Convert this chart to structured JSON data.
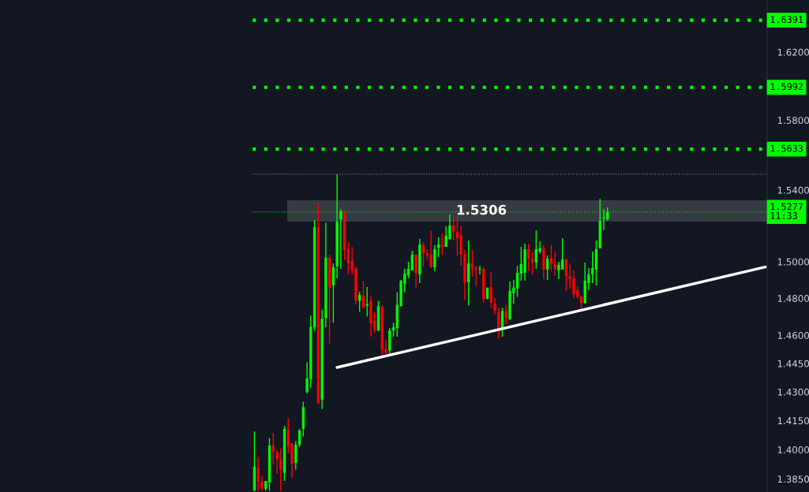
{
  "chart_data": {
    "type": "candlestick",
    "categories": [
      null,
      null,
      null,
      null,
      null,
      null,
      null,
      null,
      null,
      null,
      null,
      null,
      null,
      null,
      null,
      null,
      null,
      null,
      null,
      null,
      null,
      null,
      null,
      null,
      null,
      null,
      null,
      null,
      null,
      null,
      null,
      null,
      null,
      null,
      null,
      null,
      null,
      null,
      null,
      null,
      null,
      null,
      null,
      null,
      null,
      null,
      null,
      null,
      null,
      null,
      null,
      null,
      null,
      null,
      null,
      null,
      null,
      null,
      null,
      null,
      null,
      null,
      null,
      null,
      null,
      null,
      null,
      null,
      null,
      null,
      null,
      null,
      null,
      null,
      null,
      null,
      null,
      null,
      null,
      null,
      null,
      null,
      null,
      null,
      null,
      null,
      null,
      null,
      null,
      null,
      null,
      null,
      null,
      null,
      null,
      null,
      null,
      null,
      null,
      null,
      null,
      null,
      null,
      null,
      null,
      null,
      null,
      null,
      null,
      null,
      null,
      null,
      null,
      null,
      null,
      null,
      null,
      null,
      null,
      null,
      null,
      null,
      null,
      null,
      null,
      null,
      null,
      null,
      null,
      null,
      null,
      null,
      null,
      null,
      null,
      null,
      null
    ],
    "series": [
      {
        "type": "candlestick",
        "colors": [
          "#00ff00",
          "#ff0000",
          "#ff0000",
          "#00ff00",
          "#00ff00",
          "#ff0000",
          "#ff0000",
          "#ff0000",
          "#00ff00",
          "#ff0000",
          "#ff0000",
          "#00ff00",
          "#00ff00",
          "#00ff00",
          "#00ff00",
          "#00ff00",
          "#00ff00",
          "#ff0000",
          "#00ff00",
          "#00ff00",
          "#ff0000",
          "#00ff00",
          "#00ff00",
          "#00ff00",
          "#ff0000",
          "#ff0000",
          "#ff0000",
          "#ff0000",
          "#00ff00",
          "#ff0000",
          "#00ff00",
          "#ff0000",
          "#ff0000",
          "#00ff00",
          "#ff0000",
          "#ff0000",
          "#00ff00",
          "#00ff00",
          "#00ff00",
          "#00ff00",
          "#00ff00",
          "#00ff00",
          "#00ff00",
          "#ff0000",
          "#00ff00",
          "#ff0000",
          "#ff0000",
          "#ff0000",
          "#00ff00",
          "#00ff00",
          "#ff0000",
          "#00ff00",
          "#00ff00",
          "#ff0000",
          "#ff0000",
          "#ff0000",
          "#ff0000",
          "#00ff00",
          "#ff0000",
          "#ff0000",
          "#00ff00",
          "#ff0000",
          "#00ff00",
          "#ff0000",
          "#ff0000",
          "#ff0000",
          "#00ff00",
          "#ff0000",
          "#00ff00",
          "#00ff00",
          "#00ff00",
          "#00ff00",
          "#00ff00",
          "#ff0000",
          "#ff0000",
          "#00ff00",
          "#00ff00",
          "#ff0000",
          "#00ff00",
          "#ff0000",
          "#ff0000",
          "#00ff00",
          "#00ff00",
          "#ff0000",
          "#ff0000",
          "#ff0000",
          "#ff0000",
          "#ff0000",
          "#00ff00",
          "#00ff00",
          "#00ff00",
          "#00ff00",
          "#00ff00",
          "#00ff00",
          "#00ff00",
          null,
          null,
          null,
          null,
          null,
          null,
          null,
          null,
          null,
          null,
          null,
          null,
          null,
          null,
          null,
          null,
          null,
          null,
          null,
          null,
          null,
          null,
          null,
          null,
          null,
          null,
          null,
          null,
          null,
          null,
          null,
          null,
          null,
          null,
          null,
          null,
          null,
          null,
          null,
          null,
          null,
          null
        ],
        "ohlc": [
          [
            1.379,
            1.4094,
            1.379,
            1.3913
          ],
          [
            1.3909,
            1.3963,
            1.379,
            1.3836
          ],
          [
            1.384,
            1.3866,
            1.379,
            1.38
          ],
          [
            1.38,
            1.384,
            1.379,
            1.384
          ],
          [
            1.3832,
            1.406,
            1.379,
            1.4021
          ],
          [
            1.4021,
            1.4087,
            1.3924,
            1.399
          ],
          [
            1.3986,
            1.3998,
            1.3878,
            1.3951
          ],
          [
            1.3951,
            1.4006,
            1.379,
            1.3897
          ],
          [
            1.3882,
            1.4123,
            1.384,
            1.4107
          ],
          [
            1.4103,
            1.4163,
            1.3982,
            1.4017
          ],
          [
            1.4033,
            1.4033,
            1.3855,
            1.3928
          ],
          [
            1.3932,
            1.4044,
            1.3897,
            1.4025
          ],
          [
            1.4025,
            1.4107,
            1.4013,
            1.4099
          ],
          [
            1.4107,
            1.4247,
            1.4068,
            1.422
          ],
          [
            1.4299,
            1.4457,
            1.4291,
            1.4371
          ],
          [
            1.4367,
            1.4706,
            1.4322,
            1.4647
          ],
          [
            1.4643,
            1.5231,
            1.4622,
            1.5192
          ],
          [
            1.5192,
            1.5325,
            1.4235,
            1.4243
          ],
          [
            1.4259,
            1.4738,
            1.421,
            1.4689
          ],
          [
            1.4693,
            1.5217,
            1.4643,
            1.5022
          ],
          [
            1.5022,
            1.5039,
            1.4555,
            1.4858
          ],
          [
            1.487,
            1.4991,
            1.4669,
            1.497
          ],
          [
            1.4974,
            1.549,
            1.4909,
            1.5222
          ],
          [
            1.5236,
            1.5293,
            1.4961,
            1.528
          ],
          [
            1.5276,
            1.5285,
            1.5009,
            1.5065
          ],
          [
            1.5069,
            1.5108,
            1.4931,
            1.4991
          ],
          [
            1.5004,
            1.5082,
            1.4931,
            1.4952
          ],
          [
            1.4961,
            1.4974,
            1.4769,
            1.479
          ],
          [
            1.4786,
            1.4836,
            1.4727,
            1.4819
          ],
          [
            1.4815,
            1.4892,
            1.4748,
            1.4748
          ],
          [
            1.4761,
            1.4862,
            1.4702,
            1.4769
          ],
          [
            1.4786,
            1.4815,
            1.4593,
            1.4664
          ],
          [
            1.4676,
            1.4723,
            1.4614,
            1.463
          ],
          [
            1.4626,
            1.4786,
            1.4622,
            1.4757
          ],
          [
            1.4752,
            1.4761,
            1.4494,
            1.4523
          ],
          [
            1.4527,
            1.4576,
            1.4502,
            1.4506
          ],
          [
            1.4519,
            1.4639,
            1.4494,
            1.4626
          ],
          [
            1.4626,
            1.4668,
            1.4593,
            1.4643
          ],
          [
            1.4639,
            1.4832,
            1.4593,
            1.4765
          ],
          [
            1.4757,
            1.49,
            1.4757,
            1.4896
          ],
          [
            1.4879,
            1.4961,
            1.4832,
            1.4935
          ],
          [
            1.4926,
            1.5,
            1.4909,
            1.4961
          ],
          [
            1.4952,
            1.5061,
            1.4952,
            1.5039
          ],
          [
            1.5039,
            1.5039,
            1.4858,
            1.4939
          ],
          [
            1.4931,
            1.5126,
            1.4883,
            1.5095
          ],
          [
            1.5091,
            1.5108,
            1.4974,
            1.5048
          ],
          [
            1.5048,
            1.5069,
            1.5013,
            1.5035
          ],
          [
            1.5039,
            1.517,
            1.4965,
            1.497
          ],
          [
            1.497,
            1.5091,
            1.4948,
            1.5069
          ],
          [
            1.5078,
            1.5135,
            1.5026,
            1.5095
          ],
          [
            1.5095,
            1.5157,
            1.5039,
            1.5082
          ],
          [
            1.5082,
            1.5196,
            1.5082,
            1.5144
          ],
          [
            1.5126,
            1.5262,
            1.5121,
            1.52
          ],
          [
            1.52,
            1.5258,
            1.5117,
            1.5165
          ],
          [
            1.5165,
            1.5249,
            1.503,
            1.513
          ],
          [
            1.5144,
            1.52,
            1.4978,
            1.5039
          ],
          [
            1.5043,
            1.5065,
            1.479,
            1.4883
          ],
          [
            1.4887,
            1.5117,
            1.4761,
            1.4991
          ],
          [
            1.4991,
            1.5065,
            1.4918,
            1.4961
          ],
          [
            1.4965,
            1.4978,
            1.4866,
            1.4957
          ],
          [
            1.4957,
            1.4978,
            1.4931,
            1.4961
          ],
          [
            1.4961,
            1.497,
            1.4778,
            1.4794
          ],
          [
            1.4798,
            1.4858,
            1.4794,
            1.4858
          ],
          [
            1.4862,
            1.4944,
            1.4748,
            1.4778
          ],
          [
            1.4769,
            1.4803,
            1.471,
            1.4731
          ],
          [
            1.4723,
            1.4748,
            1.4584,
            1.4634
          ],
          [
            1.4634,
            1.4748,
            1.4593,
            1.4731
          ],
          [
            1.4731,
            1.4765,
            1.466,
            1.4693
          ],
          [
            1.4685,
            1.4892,
            1.4685,
            1.4841
          ],
          [
            1.4828,
            1.49,
            1.4769,
            1.4858
          ],
          [
            1.4853,
            1.4978,
            1.4807,
            1.4939
          ],
          [
            1.4935,
            1.5082,
            1.4896,
            1.4987
          ],
          [
            1.4939,
            1.51,
            1.4896,
            1.5069
          ],
          [
            1.5069,
            1.51,
            1.4948,
            1.5017
          ],
          [
            1.5017,
            1.5056,
            1.4931,
            1.4996
          ],
          [
            1.4996,
            1.5174,
            1.4961,
            1.5069
          ],
          [
            1.5056,
            1.5113,
            1.5043,
            1.5074
          ],
          [
            1.5074,
            1.5091,
            1.4905,
            1.4957
          ],
          [
            1.4957,
            1.5035,
            1.49,
            1.5017
          ],
          [
            1.5022,
            1.5091,
            1.4948,
            1.4987
          ],
          [
            1.4987,
            1.5056,
            1.4922,
            1.4961
          ],
          [
            1.4952,
            1.5,
            1.4905,
            1.4983
          ],
          [
            1.4957,
            1.513,
            1.4957,
            1.5013
          ],
          [
            1.5013,
            1.5017,
            1.4841,
            1.4922
          ],
          [
            1.4922,
            1.4991,
            1.4853,
            1.4905
          ],
          [
            1.4909,
            1.4952,
            1.4803,
            1.4824
          ],
          [
            1.4845,
            1.4866,
            1.4798,
            1.4807
          ],
          [
            1.4811,
            1.4811,
            1.4735,
            1.4773
          ],
          [
            1.4773,
            1.4996,
            1.4773,
            1.4896
          ],
          [
            1.4883,
            1.4965,
            1.4845,
            1.4931
          ],
          [
            1.4931,
            1.5056,
            1.4883,
            1.4965
          ],
          [
            1.4957,
            1.5117,
            1.487,
            1.5069
          ],
          [
            1.5074,
            1.535,
            1.5074,
            1.5227
          ],
          [
            1.524,
            1.5293,
            1.5174,
            1.5245
          ],
          [
            1.5236,
            1.5302,
            1.5227,
            1.5277
          ],
          null,
          null,
          null,
          null,
          null,
          null,
          null,
          null,
          null,
          null,
          null,
          null,
          null,
          null,
          null,
          null,
          null,
          null,
          null,
          null,
          null,
          null,
          null,
          null,
          null,
          null,
          null,
          null,
          null,
          null,
          null,
          null,
          null,
          null,
          null,
          null,
          null,
          null,
          null,
          null,
          null,
          null
        ]
      },
      {
        "type": "line",
        "color": "#ffffff",
        "values": [
          null,
          null,
          null,
          null,
          null,
          null,
          null,
          null,
          null,
          null,
          null,
          null,
          null,
          null,
          null,
          null,
          null,
          null,
          null,
          null,
          null,
          null,
          1.4429,
          null,
          null,
          null,
          null,
          null,
          null,
          null,
          null,
          null,
          null,
          null,
          null,
          null,
          null,
          null,
          null,
          null,
          null,
          null,
          null,
          null,
          null,
          null,
          null,
          null,
          null,
          null,
          null,
          null,
          null,
          null,
          null,
          null,
          null,
          null,
          null,
          null,
          null,
          null,
          null,
          null,
          null,
          null,
          null,
          null,
          null,
          null,
          null,
          null,
          null,
          null,
          null,
          null,
          null,
          null,
          null,
          null,
          null,
          null,
          null,
          null,
          null,
          null,
          null,
          null,
          null,
          null,
          null,
          null,
          null,
          null,
          null,
          null,
          null,
          null,
          null,
          null,
          null,
          null,
          null,
          null,
          null,
          null,
          null,
          null,
          null,
          null,
          null,
          null,
          null,
          null,
          null,
          null,
          null,
          null,
          null,
          null,
          null,
          null,
          null,
          null,
          null,
          null,
          null,
          null,
          null,
          null,
          null,
          null,
          null,
          null,
          null,
          null,
          1.4971
        ]
      }
    ],
    "ylim": [
      1.3784,
      1.6513
    ],
    "log": "y",
    "yticks": [
      {
        "value": 1.385,
        "label": "1.3850"
      },
      {
        "value": 1.4,
        "label": "1.4000"
      },
      {
        "value": 1.415,
        "label": "1.4150"
      },
      {
        "value": 1.43,
        "label": "1.4300"
      },
      {
        "value": 1.445,
        "label": "1.4450"
      },
      {
        "value": 1.46,
        "label": "1.4600"
      },
      {
        "value": 1.48,
        "label": "1.4800"
      },
      {
        "value": 1.5,
        "label": "1.5000"
      },
      {
        "value": 1.54,
        "label": "1.5400"
      },
      {
        "value": 1.58,
        "label": "1.5800"
      },
      {
        "value": 1.62,
        "label": "1.6200"
      }
    ],
    "tick_labels": "y",
    "ref_lines": [
      {
        "axis": "y",
        "value": 1.6391,
        "label": "1.6391",
        "color": "#00ff00",
        "line_style": "dotted"
      },
      {
        "axis": "y",
        "value": 1.5992,
        "label": "1.5992",
        "color": "#00ff00",
        "line_style": "dotted"
      },
      {
        "axis": "y",
        "value": 1.5633,
        "label": "1.5633",
        "color": "#00ff00",
        "line_style": "dotted"
      },
      {
        "axis": "y",
        "value": 1.5277,
        "label": "1.5277\n11:33",
        "color": "#00ff00",
        "line_style": "dotted"
      },
      {
        "axis": "y",
        "value": 1.549,
        "color": "#787b86",
        "line_style": "dotted"
      }
    ],
    "bands": [
      {
        "axis": "y",
        "from": 1.5227,
        "to": 1.5338,
        "label": "1.5306",
        "color": "#ffffff"
      }
    ]
  }
}
